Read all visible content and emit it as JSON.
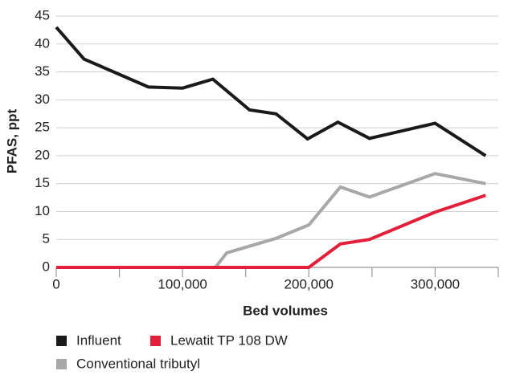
{
  "chart_data": {
    "type": "line",
    "xlabel": "Bed volumes",
    "ylabel": "PFAS, ppt",
    "xlim": [
      0,
      350000
    ],
    "ylim": [
      0,
      45
    ],
    "xticks": [
      {
        "value": 0,
        "label": "0"
      },
      {
        "value": 50000,
        "label": null
      },
      {
        "value": 100000,
        "label": "100,000"
      },
      {
        "value": 150000,
        "label": null
      },
      {
        "value": 200000,
        "label": "200,000"
      },
      {
        "value": 250000,
        "label": null
      },
      {
        "value": 300000,
        "label": "300,000"
      },
      {
        "value": 350000,
        "label": null
      }
    ],
    "yticks": [
      0,
      5,
      10,
      15,
      20,
      25,
      30,
      35,
      40,
      45
    ],
    "grid": true,
    "legend": "bottom",
    "series": [
      {
        "name": "Influent",
        "color": "#1a1a1a",
        "x": [
          0,
          22000,
          73000,
          100000,
          124000,
          153000,
          174000,
          199000,
          223000,
          248000,
          300000,
          340000
        ],
        "values": [
          43,
          37.3,
          32.3,
          32.1,
          33.7,
          28.2,
          27.5,
          23,
          26,
          23.1,
          25.8,
          20
        ]
      },
      {
        "name": "Lewatit TP 108 DW",
        "color": "#e3203b",
        "x": [
          0,
          200000,
          225000,
          248000,
          300000,
          340000
        ],
        "values": [
          0,
          0,
          4.2,
          5,
          9.9,
          12.9
        ]
      },
      {
        "name": "Conventional tributyl",
        "color": "#a8a8a8",
        "x": [
          0,
          126000,
          135000,
          174000,
          200000,
          225000,
          248000,
          300000,
          340000
        ],
        "values": [
          0,
          0,
          2.6,
          5.2,
          7.6,
          14.4,
          12.6,
          16.8,
          15
        ]
      }
    ]
  }
}
